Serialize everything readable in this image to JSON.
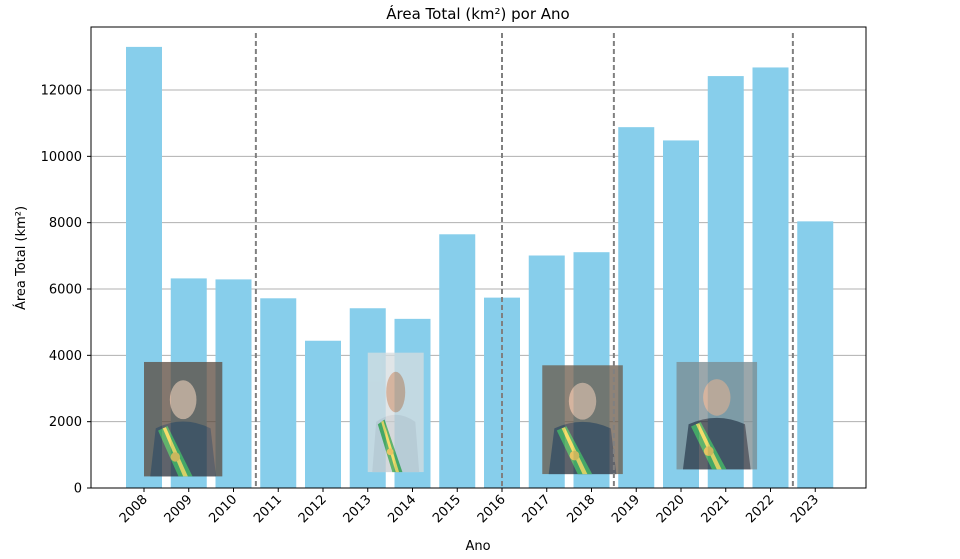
{
  "chart_data": {
    "type": "bar",
    "title": "Área Total (km²) por Ano",
    "xlabel": "Ano",
    "ylabel": "Área Total (km²)",
    "categories": [
      "2008",
      "2009",
      "2010",
      "2011",
      "2012",
      "2013",
      "2014",
      "2015",
      "2016",
      "2017",
      "2018",
      "2019",
      "2020",
      "2021",
      "2022",
      "2023"
    ],
    "values": [
      13300,
      6320,
      6290,
      5720,
      4440,
      5420,
      5100,
      7650,
      5740,
      7010,
      7110,
      10880,
      10480,
      12420,
      12680,
      8040
    ],
    "ylim": [
      0,
      13900
    ],
    "yticks": [
      0,
      2000,
      4000,
      6000,
      8000,
      10000,
      12000
    ],
    "ytick_labels": [
      "0",
      "2000",
      "4000",
      "6000",
      "8000",
      "10000",
      "12000"
    ],
    "grid": "horizontal",
    "bar_color": "#87ceeb",
    "vlines": [
      2010.5,
      2016,
      2018.5,
      2022.5
    ],
    "vline_color": "#808080",
    "portraits": [
      {
        "name": "portrait-lula",
        "x_from": 2008,
        "x_to": 2009.75,
        "y_from": 350,
        "y_to": 3800
      },
      {
        "name": "portrait-dilma",
        "x_from": 2013,
        "x_to": 2014.25,
        "y_from": 480,
        "y_to": 4080
      },
      {
        "name": "portrait-temer",
        "x_from": 2016.9,
        "x_to": 2018.7,
        "y_from": 420,
        "y_to": 3700
      },
      {
        "name": "portrait-bolsonaro",
        "x_from": 2019.9,
        "x_to": 2021.7,
        "y_from": 560,
        "y_to": 3800
      }
    ]
  }
}
